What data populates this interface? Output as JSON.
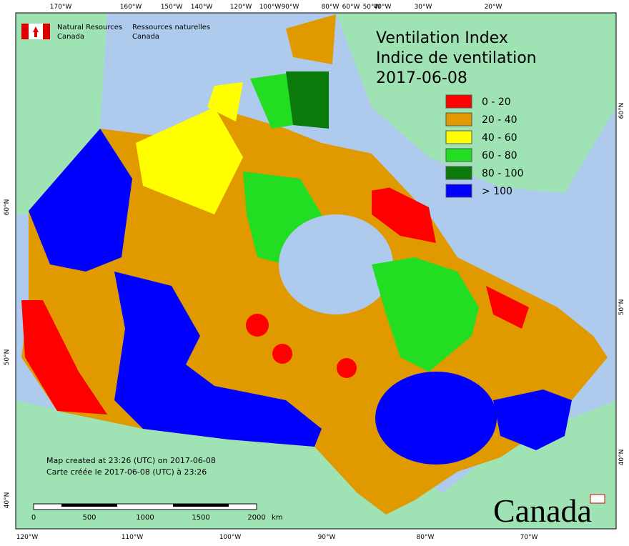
{
  "header": {
    "agency_en": "Natural Resources",
    "country_en": "Canada",
    "agency_fr": "Ressources naturelles",
    "country_fr": "Canada"
  },
  "title": {
    "line1": "Ventilation Index",
    "line2": "Indice de ventilation",
    "date": "2017-06-08"
  },
  "legend": [
    {
      "label": "0 - 20",
      "color": "#ff0000"
    },
    {
      "label": "20 - 40",
      "color": "#e09a00"
    },
    {
      "label": "40 - 60",
      "color": "#ffff00"
    },
    {
      "label": "60 - 80",
      "color": "#22dd22"
    },
    {
      "label": "80 - 100",
      "color": "#0a7a0a"
    },
    {
      "label": "> 100",
      "color": "#0000ff"
    }
  ],
  "top_longitudes": [
    "170°W",
    "160°W",
    "150°W",
    "140°W",
    "120°W",
    "100°W",
    "90°W",
    "80°W",
    "60°W",
    "50°W",
    "40°W",
    "30°W",
    "20°W"
  ],
  "bottom_longitudes": [
    "120°W",
    "110°W",
    "100°W",
    "90°W",
    "80°W",
    "70°W"
  ],
  "left_latitudes": [
    "60°N",
    "50°N",
    "40°N"
  ],
  "right_latitudes": [
    "60°N",
    "50°N",
    "40°N"
  ],
  "footer": {
    "created_en": "Map created at 23:26 (UTC) on 2017-06-08",
    "created_fr": "Carte créée le 2017-06-08 (UTC) à 23:26"
  },
  "scale": {
    "labels": [
      "0",
      "500",
      "1000",
      "1500",
      "2000"
    ],
    "unit": "km"
  },
  "wordmark": "Canada"
}
